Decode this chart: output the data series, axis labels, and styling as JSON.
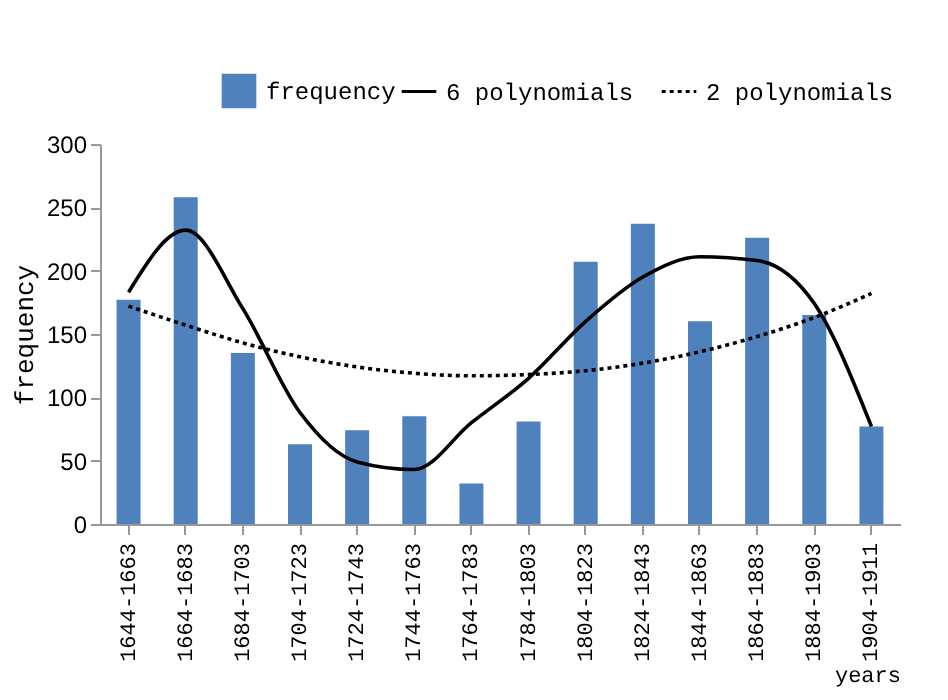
{
  "chart_data": {
    "type": "bar",
    "xlabel": "years",
    "ylabel": "frequency",
    "categories": [
      "1644-1663",
      "1664-1683",
      "1684-1703",
      "1704-1723",
      "1724-1743",
      "1744-1763",
      "1764-1783",
      "1784-1803",
      "1804-1823",
      "1824-1843",
      "1844-1863",
      "1864-1883",
      "1884-1903",
      "1904-1911"
    ],
    "series": [
      {
        "name": "frequency",
        "color": "#4f81bd",
        "values": [
          177,
          258,
          135,
          63,
          74,
          85,
          32,
          81,
          207,
          237,
          160,
          226,
          165,
          77
        ]
      },
      {
        "name": "6 polynomials",
        "type": "line",
        "line_style": "solid",
        "color": "#000000",
        "values": [
          183,
          232,
          170,
          88,
          49,
          43,
          80,
          115,
          160,
          195,
          211,
          208,
          174,
          77
        ]
      },
      {
        "name": "2 polynomials",
        "type": "line",
        "line_style": "dotted",
        "color": "#000000",
        "values": [
          172,
          157,
          143,
          132,
          124,
          119,
          117,
          118,
          121,
          127,
          136,
          148,
          163,
          182
        ]
      }
    ],
    "ylim": [
      0,
      300
    ],
    "yticks": [
      0,
      50,
      100,
      150,
      200,
      250,
      300
    ],
    "grid": false,
    "legend": "top"
  }
}
